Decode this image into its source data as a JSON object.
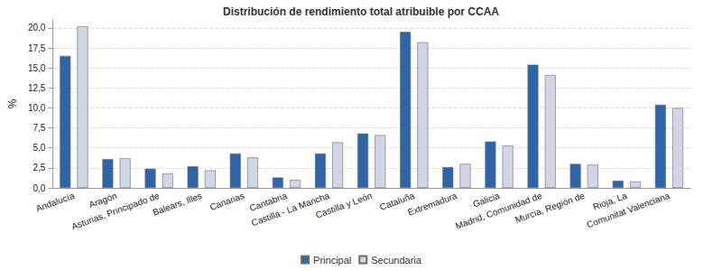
{
  "chart_data": {
    "type": "bar",
    "title": "Distribución de rendimiento total atribuible por CCAA",
    "ylabel": "%",
    "categories": [
      "Andalucía",
      "Aragón",
      "Asturias, Principado de",
      "Balears, Illes",
      "Canarias",
      "Cantabria",
      "Castilla - La Mancha",
      "Castilla y León",
      "Cataluña",
      "Extremadura",
      "Galicia",
      "Madrid, Comunidad de",
      "Murcia, Región de",
      "Rioja, La",
      "Comunitat Valenciana"
    ],
    "series": [
      {
        "name": "Principal",
        "color": "#2e65a8",
        "values": [
          16.5,
          3.6,
          2.4,
          2.7,
          4.3,
          1.3,
          4.3,
          6.8,
          19.5,
          2.6,
          5.8,
          15.4,
          3.0,
          0.9,
          10.4
        ]
      },
      {
        "name": "Secundaria",
        "color": "#d2d5e5",
        "values": [
          20.2,
          3.7,
          1.8,
          2.2,
          3.8,
          1.0,
          5.7,
          6.6,
          18.2,
          3.0,
          5.3,
          14.1,
          2.9,
          0.8,
          10.0
        ]
      }
    ],
    "ylim": [
      0,
      21
    ],
    "yticks": [
      {
        "value": 0,
        "label": "0,0"
      },
      {
        "value": 2.5,
        "label": "2,5"
      },
      {
        "value": 5,
        "label": "5,0"
      },
      {
        "value": 7.5,
        "label": "7,5"
      },
      {
        "value": 10,
        "label": "10,0"
      },
      {
        "value": 12.5,
        "label": "12,5"
      },
      {
        "value": 15,
        "label": "15,0"
      },
      {
        "value": 17.5,
        "label": "17,5"
      },
      {
        "value": 20,
        "label": "20,0"
      }
    ],
    "grid": true,
    "legend": "bottom"
  }
}
